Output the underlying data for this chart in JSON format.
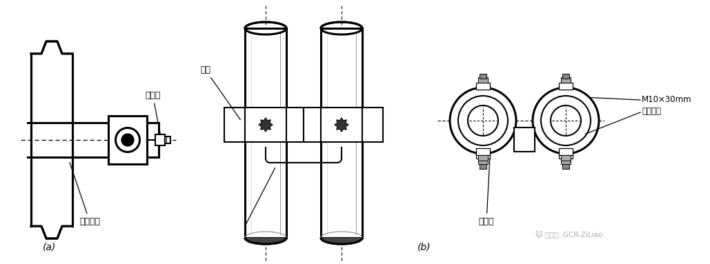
{
  "bg_color": "#ffffff",
  "line_color": "#000000",
  "label_a": "(a)",
  "label_b": "(b)",
  "text_lianjiexian": "连接线",
  "text_jinshuguandao": "金属管道",
  "text_baojian": "抱箍",
  "text_kuojiexian": "跨接线",
  "text_bolt_1": "M10×30mm",
  "text_bolt_2": "镀锌螺栓",
  "text_watermark": "微信号: GCR-ZiLiao",
  "fig_width": 10.29,
  "fig_height": 3.83,
  "dpi": 100
}
